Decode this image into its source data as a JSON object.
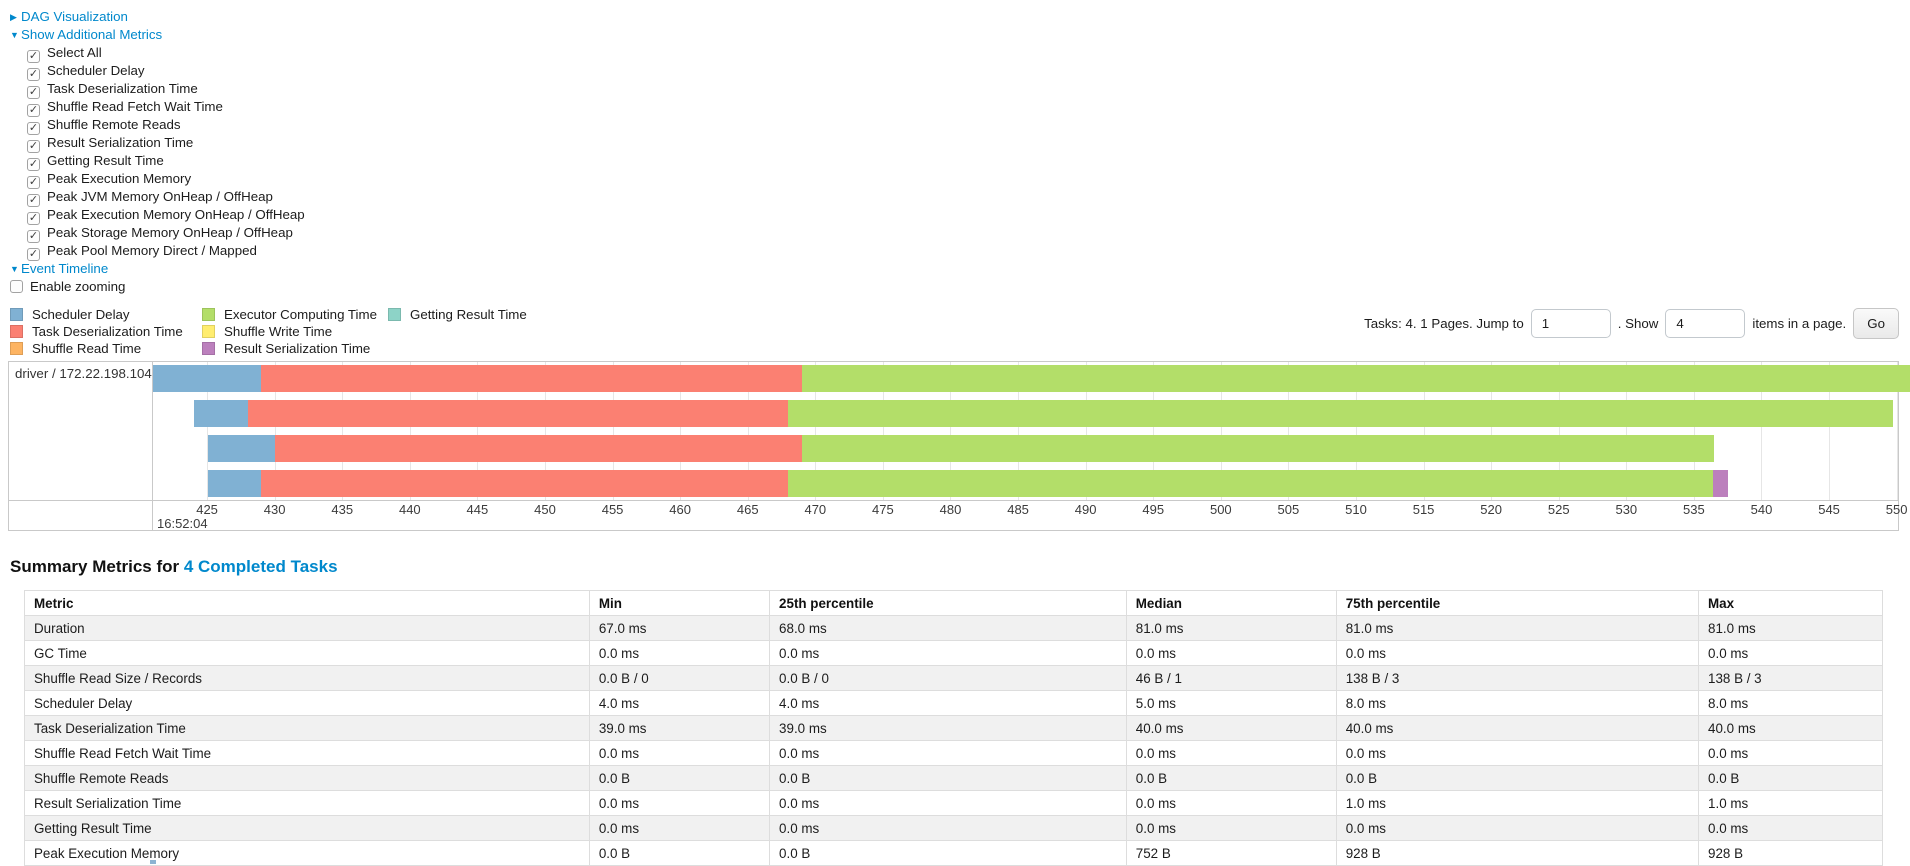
{
  "colors": {
    "link": "#0088cc"
  },
  "toggles": {
    "dag": {
      "label": "DAG Visualization",
      "state": "collapsed"
    },
    "metrics": {
      "label": "Show Additional Metrics",
      "state": "expanded"
    },
    "timeline": {
      "label": "Event Timeline",
      "state": "expanded"
    }
  },
  "additional_metrics": {
    "items": [
      {
        "label": "Select All",
        "checked": true
      },
      {
        "label": "Scheduler Delay",
        "checked": true
      },
      {
        "label": "Task Deserialization Time",
        "checked": true
      },
      {
        "label": "Shuffle Read Fetch Wait Time",
        "checked": true
      },
      {
        "label": "Shuffle Remote Reads",
        "checked": true
      },
      {
        "label": "Result Serialization Time",
        "checked": true
      },
      {
        "label": "Getting Result Time",
        "checked": true
      },
      {
        "label": "Peak Execution Memory",
        "checked": true
      },
      {
        "label": "Peak JVM Memory OnHeap / OffHeap",
        "checked": true
      },
      {
        "label": "Peak Execution Memory OnHeap / OffHeap",
        "checked": true
      },
      {
        "label": "Peak Storage Memory OnHeap / OffHeap",
        "checked": true
      },
      {
        "label": "Peak Pool Memory Direct / Mapped",
        "checked": true
      }
    ]
  },
  "enable_zooming": {
    "label": "Enable zooming",
    "checked": false
  },
  "legend": {
    "items": [
      {
        "type": "scheduler_delay",
        "label": "Scheduler Delay",
        "color": "#80B1D3"
      },
      {
        "type": "task_deserialization",
        "label": "Task Deserialization Time",
        "color": "#FB8072"
      },
      {
        "type": "shuffle_read",
        "label": "Shuffle Read Time",
        "color": "#FDB462"
      },
      {
        "type": "executor_computing",
        "label": "Executor Computing Time",
        "color": "#B3DE69"
      },
      {
        "type": "shuffle_write",
        "label": "Shuffle Write Time",
        "color": "#FFED6F"
      },
      {
        "type": "result_serialization",
        "label": "Result Serialization Time",
        "color": "#BC80BD"
      },
      {
        "type": "getting_result",
        "label": "Getting Result Time",
        "color": "#8DD3C7"
      }
    ]
  },
  "pagination": {
    "tasks_label": "Tasks: 4. 1 Pages. Jump to",
    "jump_value": "1",
    "show_label": ". Show",
    "show_value": "4",
    "suffix_label": "items in a page.",
    "go_label": "Go"
  },
  "chart_data": {
    "type": "timeline",
    "row_label": "driver / 172.22.198.104",
    "axis": {
      "min": 421,
      "max": 550.1,
      "unit": "ms",
      "tick_step": 5,
      "ticks": [
        425,
        430,
        435,
        440,
        445,
        450,
        455,
        460,
        465,
        470,
        475,
        480,
        485,
        490,
        495,
        500,
        505,
        510,
        515,
        520,
        525,
        530,
        535,
        540,
        545,
        550
      ],
      "start_time_label": "16:52:04"
    },
    "bars": [
      {
        "segments": [
          {
            "type": "scheduler_delay",
            "start": 421,
            "end": 429
          },
          {
            "type": "task_deserialization",
            "start": 429,
            "end": 469
          },
          {
            "type": "executor_computing",
            "start": 469,
            "end": 551
          }
        ]
      },
      {
        "segments": [
          {
            "type": "scheduler_delay",
            "start": 424,
            "end": 428
          },
          {
            "type": "task_deserialization",
            "start": 428,
            "end": 468
          },
          {
            "type": "executor_computing",
            "start": 468,
            "end": 549.7
          }
        ]
      },
      {
        "segments": [
          {
            "type": "scheduler_delay",
            "start": 425.1,
            "end": 430
          },
          {
            "type": "task_deserialization",
            "start": 430,
            "end": 469
          },
          {
            "type": "executor_computing",
            "start": 469,
            "end": 536.5
          }
        ]
      },
      {
        "segments": [
          {
            "type": "scheduler_delay",
            "start": 425.1,
            "end": 429
          },
          {
            "type": "task_deserialization",
            "start": 429,
            "end": 468
          },
          {
            "type": "executor_computing",
            "start": 468,
            "end": 536.4
          },
          {
            "type": "result_serialization",
            "start": 536.4,
            "end": 537.5
          }
        ]
      }
    ]
  },
  "summary": {
    "title_prefix": "Summary Metrics for ",
    "title_link": "4 Completed Tasks",
    "columns": [
      "Metric",
      "Min",
      "25th percentile",
      "Median",
      "75th percentile",
      "Max"
    ],
    "col_widths": [
      "30.4%",
      "9.7%",
      "19.2%",
      "11.3%",
      "19.5%",
      "9.9%"
    ],
    "rows": [
      [
        "Duration",
        "67.0 ms",
        "68.0 ms",
        "81.0 ms",
        "81.0 ms",
        "81.0 ms"
      ],
      [
        "GC Time",
        "0.0 ms",
        "0.0 ms",
        "0.0 ms",
        "0.0 ms",
        "0.0 ms"
      ],
      [
        "Shuffle Read Size / Records",
        "0.0 B / 0",
        "0.0 B / 0",
        "46 B / 1",
        "138 B / 3",
        "138 B / 3"
      ],
      [
        "Scheduler Delay",
        "4.0 ms",
        "4.0 ms",
        "5.0 ms",
        "8.0 ms",
        "8.0 ms"
      ],
      [
        "Task Deserialization Time",
        "39.0 ms",
        "39.0 ms",
        "40.0 ms",
        "40.0 ms",
        "40.0 ms"
      ],
      [
        "Shuffle Read Fetch Wait Time",
        "0.0 ms",
        "0.0 ms",
        "0.0 ms",
        "0.0 ms",
        "0.0 ms"
      ],
      [
        "Shuffle Remote Reads",
        "0.0 B",
        "0.0 B",
        "0.0 B",
        "0.0 B",
        "0.0 B"
      ],
      [
        "Result Serialization Time",
        "0.0 ms",
        "0.0 ms",
        "0.0 ms",
        "1.0 ms",
        "1.0 ms"
      ],
      [
        "Getting Result Time",
        "0.0 ms",
        "0.0 ms",
        "0.0 ms",
        "0.0 ms",
        "0.0 ms"
      ],
      [
        "Peak Execution Memory",
        "0.0 B",
        "0.0 B",
        "752 B",
        "928 B",
        "928 B"
      ]
    ]
  }
}
